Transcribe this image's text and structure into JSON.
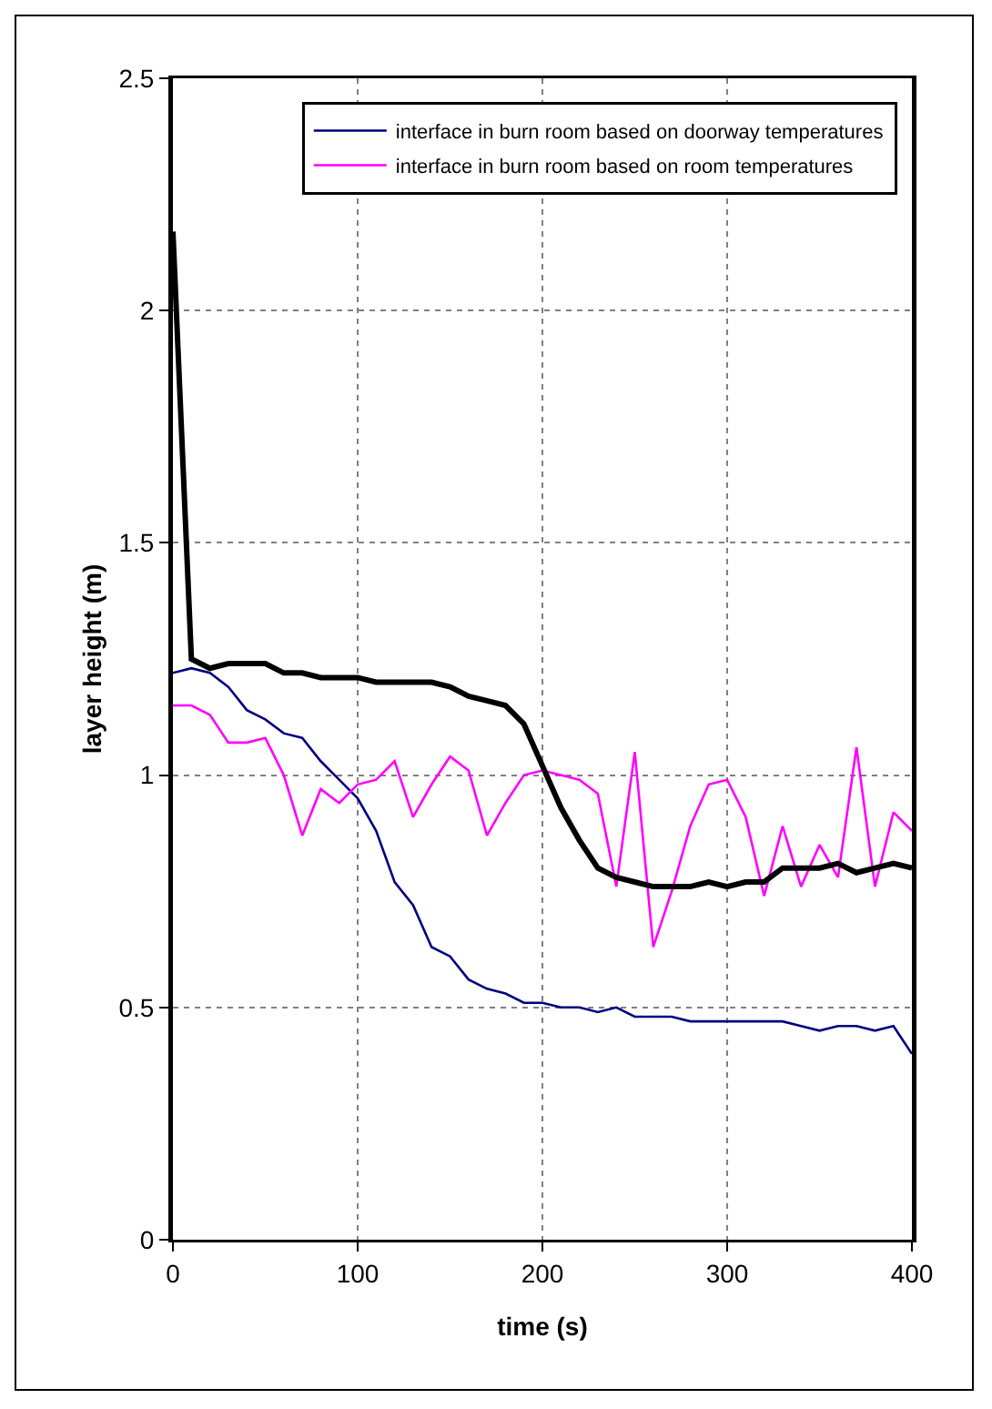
{
  "chart_data": {
    "type": "line",
    "xlabel": "time (s)",
    "ylabel": "layer height (m)",
    "x": [
      0,
      10,
      20,
      30,
      40,
      50,
      60,
      70,
      80,
      90,
      100,
      110,
      120,
      130,
      140,
      150,
      160,
      170,
      180,
      190,
      200,
      210,
      220,
      230,
      240,
      250,
      260,
      270,
      280,
      290,
      300,
      310,
      320,
      330,
      340,
      350,
      360,
      370,
      380,
      390,
      400
    ],
    "series": [
      {
        "name": "interface in burn room based on doorway temperatures",
        "color": "#000080",
        "values": [
          1.22,
          1.23,
          1.22,
          1.19,
          1.14,
          1.12,
          1.09,
          1.08,
          1.03,
          0.99,
          0.95,
          0.88,
          0.77,
          0.72,
          0.63,
          0.61,
          0.56,
          0.54,
          0.53,
          0.51,
          0.51,
          0.5,
          0.5,
          0.49,
          0.5,
          0.48,
          0.48,
          0.48,
          0.47,
          0.47,
          0.47,
          0.47,
          0.47,
          0.47,
          0.46,
          0.45,
          0.46,
          0.46,
          0.45,
          0.46,
          0.4
        ]
      },
      {
        "name": "interface in burn room based on room temperatures",
        "color": "#ff00ff",
        "values": [
          1.15,
          1.15,
          1.13,
          1.07,
          1.07,
          1.08,
          1.0,
          0.87,
          0.97,
          0.94,
          0.98,
          0.99,
          1.03,
          0.91,
          0.98,
          1.04,
          1.01,
          0.87,
          0.94,
          1.0,
          1.01,
          1.0,
          0.99,
          0.96,
          0.76,
          1.05,
          0.63,
          0.75,
          0.89,
          0.98,
          0.99,
          0.91,
          0.74,
          0.89,
          0.76,
          0.85,
          0.78,
          1.06,
          0.76,
          0.92,
          0.88
        ]
      },
      {
        "color": "#000000",
        "values": [
          2.17,
          1.25,
          1.23,
          1.24,
          1.24,
          1.24,
          1.22,
          1.22,
          1.21,
          1.21,
          1.21,
          1.2,
          1.2,
          1.2,
          1.2,
          1.19,
          1.17,
          1.16,
          1.15,
          1.11,
          1.02,
          0.93,
          0.86,
          0.8,
          0.78,
          0.77,
          0.76,
          0.76,
          0.76,
          0.77,
          0.76,
          0.77,
          0.77,
          0.8,
          0.8,
          0.8,
          0.81,
          0.79,
          0.8,
          0.81,
          0.8
        ]
      }
    ],
    "xlim": [
      0,
      400
    ],
    "xticks": [
      0,
      100,
      200,
      300,
      400
    ],
    "ylim": [
      0,
      2.5
    ],
    "yticks": [
      0,
      0.5,
      1,
      1.5,
      2,
      2.5
    ],
    "grid": true,
    "legend": "top right",
    "marker": "none",
    "line_style": "solid"
  }
}
